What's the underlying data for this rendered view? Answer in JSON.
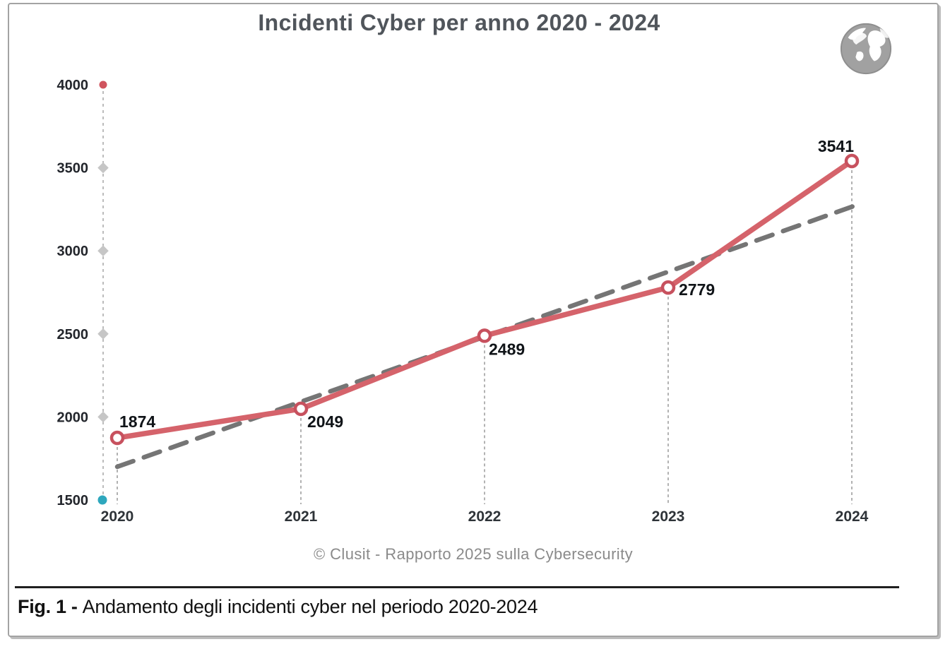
{
  "title": "Incidenti Cyber per anno 2020 - 2024",
  "source_caption": "© Clusit - Rapporto 2025 sulla Cybersecurity",
  "figure_caption": {
    "prefix": "Fig. 1 -",
    "text": "Andamento degli incidenti cyber nel periodo 2020-2024"
  },
  "colors": {
    "series_line": "#d5636b",
    "marker_ring": "#c7515e",
    "marker_fill": "#ffffff",
    "trend_line": "#757575",
    "axis_dash": "#bcbcbc",
    "axis_tick_diamond": "#c6c6c6",
    "axis_top_dot": "#d0545e",
    "axis_bottom_dot": "#2ea7bd",
    "drop_line": "#9f9f9f",
    "title_text": "#50555b",
    "tick_label": "#23262c",
    "year_label": "#2e3338",
    "data_label": "#101418",
    "source_text": "#8a8a8a",
    "divider": "#1f1f1f",
    "frame_border": "#a3a3a3",
    "globe_gray": "#a1a1a1"
  },
  "chart_data": {
    "type": "line",
    "title": "Incidenti Cyber per anno 2020 - 2024",
    "categories": [
      "2020",
      "2021",
      "2022",
      "2023",
      "2024"
    ],
    "series": [
      {
        "name": "Incidenti cyber",
        "values": [
          1874,
          2049,
          2489,
          2779,
          3541
        ]
      }
    ],
    "data_labels": [
      "1874",
      "2049",
      "2489",
      "2779",
      "3541"
    ],
    "y_ticks": [
      1500,
      2000,
      2500,
      3000,
      3500,
      4000
    ],
    "ylim": [
      1500,
      4000
    ],
    "trendline": {
      "style": "dashed",
      "start_x": 2020,
      "start_value": 1700,
      "end_x": 2024.05,
      "end_value": 3285
    },
    "grid": false,
    "legend": "none",
    "xlabel": "",
    "ylabel": ""
  }
}
